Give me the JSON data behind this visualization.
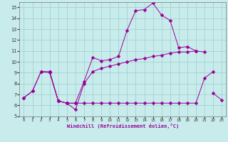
{
  "xlabel": "Windchill (Refroidissement éolien,°C)",
  "xlim": [
    -0.5,
    23.5
  ],
  "ylim": [
    5,
    15.5
  ],
  "xticks": [
    0,
    1,
    2,
    3,
    4,
    5,
    6,
    7,
    8,
    9,
    10,
    11,
    12,
    13,
    14,
    15,
    16,
    17,
    18,
    19,
    20,
    21,
    22,
    23
  ],
  "yticks": [
    5,
    6,
    7,
    8,
    9,
    10,
    11,
    12,
    13,
    14,
    15
  ],
  "background_color": "#c8ecec",
  "grid_color": "#a0cccc",
  "line_color": "#990099",
  "line1_y": [
    6.7,
    7.3,
    9.1,
    9.1,
    6.4,
    6.2,
    6.2,
    8.2,
    10.4,
    10.1,
    10.2,
    10.5,
    12.9,
    14.7,
    14.8,
    15.4,
    14.3,
    13.8,
    11.3,
    11.4,
    11.0,
    10.9,
    null,
    null
  ],
  "line2_y": [
    6.7,
    7.3,
    9.1,
    9.0,
    6.4,
    6.2,
    5.6,
    8.0,
    9.1,
    9.4,
    9.6,
    9.8,
    10.0,
    10.2,
    10.3,
    10.5,
    10.6,
    10.8,
    10.9,
    10.9,
    11.0,
    null,
    null,
    null
  ],
  "line3_y": [
    null,
    null,
    null,
    9.1,
    6.4,
    6.2,
    6.2,
    6.2,
    6.2,
    6.2,
    6.2,
    6.2,
    6.2,
    6.2,
    6.2,
    6.2,
    6.2,
    6.2,
    6.2,
    6.2,
    6.2,
    8.5,
    9.1,
    null
  ],
  "line4_y": [
    null,
    null,
    null,
    null,
    null,
    null,
    null,
    null,
    null,
    null,
    null,
    null,
    null,
    null,
    null,
    null,
    null,
    null,
    null,
    null,
    null,
    null,
    7.1,
    6.5
  ],
  "markersize": 2.5
}
